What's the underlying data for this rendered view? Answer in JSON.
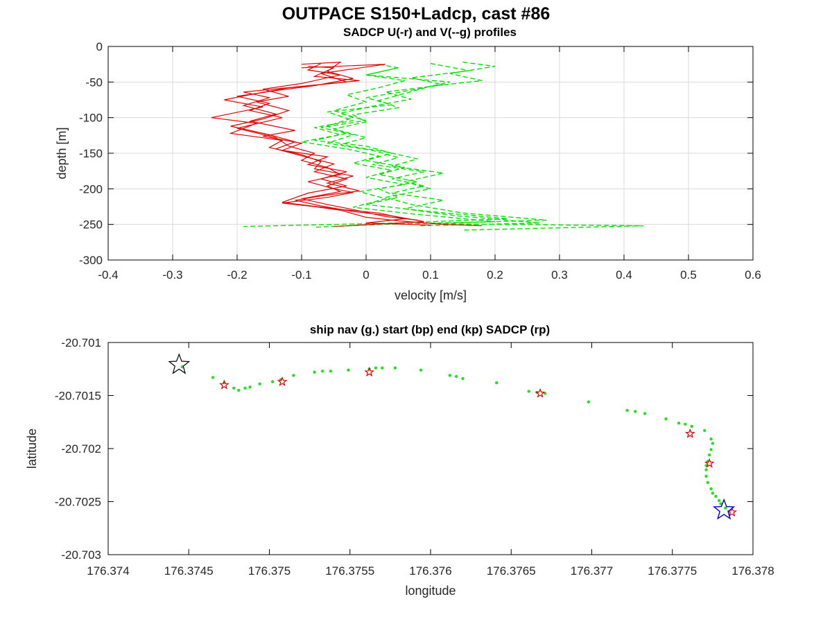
{
  "figure": {
    "title": "OUTPACE S150+Ladcp, cast #86"
  },
  "chart_data": [
    {
      "type": "line",
      "title": "SADCP U(-r) and V(--g) profiles",
      "xlabel": "velocity [m/s]",
      "ylabel": "depth [m]",
      "xlim": [
        -0.4,
        0.6
      ],
      "ylim": [
        -300,
        0
      ],
      "xticks": [
        "-0.4",
        "-0.3",
        "-0.2",
        "-0.1",
        "0",
        "0.1",
        "0.2",
        "0.3",
        "0.4",
        "0.5",
        "0.6"
      ],
      "yticks": [
        "0",
        "-50",
        "-100",
        "-150",
        "-200",
        "-250",
        "-300"
      ],
      "grid": true,
      "series": [
        {
          "values": [
            [
              -0.1,
              -25
            ],
            [
              -0.04,
              -22
            ],
            [
              -0.06,
              -35
            ],
            [
              -0.02,
              -45
            ],
            [
              -0.08,
              -55
            ],
            [
              -0.14,
              -62
            ],
            [
              -0.2,
              -70
            ],
            [
              -0.15,
              -80
            ],
            [
              -0.18,
              -90
            ],
            [
              -0.13,
              -100
            ],
            [
              -0.2,
              -115
            ],
            [
              -0.14,
              -128
            ],
            [
              -0.12,
              -140
            ],
            [
              -0.08,
              -150
            ],
            [
              -0.1,
              -160
            ],
            [
              -0.06,
              -170
            ],
            [
              -0.04,
              -180
            ],
            [
              -0.09,
              -190
            ],
            [
              -0.05,
              -200
            ],
            [
              -0.02,
              -205
            ],
            [
              -0.06,
              -212
            ],
            [
              -0.13,
              -220
            ],
            [
              -0.08,
              -225
            ],
            [
              -0.04,
              -230
            ],
            [
              0.0,
              -240
            ],
            [
              0.05,
              -245
            ],
            [
              0.12,
              -250
            ],
            [
              0.18,
              -252
            ]
          ]
        },
        {
          "values": [
            [
              -0.09,
              -28
            ],
            [
              -0.05,
              -30
            ],
            [
              -0.08,
              -42
            ],
            [
              -0.01,
              -48
            ],
            [
              -0.12,
              -58
            ],
            [
              -0.17,
              -66
            ],
            [
              -0.22,
              -75
            ],
            [
              -0.16,
              -85
            ],
            [
              -0.24,
              -100
            ],
            [
              -0.17,
              -108
            ],
            [
              -0.21,
              -122
            ],
            [
              -0.13,
              -132
            ],
            [
              -0.15,
              -142
            ],
            [
              -0.1,
              -152
            ],
            [
              -0.07,
              -162
            ],
            [
              -0.08,
              -172
            ],
            [
              -0.02,
              -182
            ],
            [
              -0.06,
              -192
            ],
            [
              -0.01,
              -203
            ],
            [
              -0.07,
              -210
            ],
            [
              -0.11,
              -216
            ],
            [
              -0.07,
              -224
            ],
            [
              -0.02,
              -232
            ],
            [
              0.04,
              -238
            ],
            [
              0.09,
              -246
            ],
            [
              -0.05,
              -253
            ]
          ]
        },
        {
          "values": [
            [
              -0.1,
              -30
            ],
            [
              0.03,
              -25
            ],
            [
              -0.07,
              -38
            ],
            [
              -0.03,
              -50
            ],
            [
              -0.11,
              -57
            ],
            [
              -0.19,
              -64
            ],
            [
              -0.15,
              -72
            ],
            [
              -0.19,
              -83
            ],
            [
              -0.14,
              -95
            ],
            [
              -0.18,
              -105
            ],
            [
              -0.11,
              -118
            ],
            [
              -0.16,
              -126
            ],
            [
              -0.1,
              -136
            ],
            [
              -0.13,
              -146
            ],
            [
              -0.06,
              -155
            ],
            [
              -0.09,
              -166
            ],
            [
              -0.03,
              -176
            ],
            [
              -0.07,
              -186
            ],
            [
              -0.03,
              -196
            ],
            [
              -0.09,
              -206
            ],
            [
              -0.13,
              -219
            ],
            [
              -0.05,
              -228
            ],
            [
              0.02,
              -234
            ],
            [
              0.06,
              -242
            ],
            [
              0.0,
              -248
            ],
            [
              0.1,
              -251
            ]
          ]
        },
        {
          "values": [
            [
              -0.07,
              -24
            ],
            [
              -0.09,
              -33
            ],
            [
              -0.04,
              -40
            ],
            [
              -0.1,
              -52
            ],
            [
              -0.16,
              -60
            ],
            [
              -0.12,
              -70
            ],
            [
              -0.17,
              -78
            ],
            [
              -0.12,
              -90
            ],
            [
              -0.16,
              -102
            ],
            [
              -0.21,
              -112
            ],
            [
              -0.15,
              -124
            ],
            [
              -0.11,
              -134
            ],
            [
              -0.14,
              -144
            ],
            [
              -0.09,
              -156
            ],
            [
              -0.05,
              -165
            ],
            [
              -0.08,
              -176
            ],
            [
              -0.03,
              -186
            ],
            [
              -0.06,
              -196
            ],
            [
              -0.04,
              -204
            ],
            [
              -0.1,
              -214
            ],
            [
              -0.06,
              -222
            ],
            [
              -0.01,
              -231
            ],
            [
              0.03,
              -239
            ],
            [
              0.08,
              -244
            ]
          ]
        }
      ],
      "series_v": [
        {
          "values": [
            [
              0.02,
              -25
            ],
            [
              0.05,
              -30
            ],
            [
              0.0,
              -40
            ],
            [
              0.06,
              -48
            ],
            [
              0.02,
              -58
            ],
            [
              -0.03,
              -68
            ],
            [
              0.0,
              -78
            ],
            [
              -0.05,
              -90
            ],
            [
              -0.02,
              -100
            ],
            [
              -0.06,
              -112
            ],
            [
              -0.03,
              -122
            ],
            [
              -0.08,
              -132
            ],
            [
              0.0,
              -140
            ],
            [
              0.04,
              -150
            ],
            [
              0.0,
              -160
            ],
            [
              0.06,
              -170
            ],
            [
              0.02,
              -180
            ],
            [
              0.08,
              -190
            ],
            [
              0.02,
              -200
            ],
            [
              0.05,
              -212
            ],
            [
              0.0,
              -222
            ],
            [
              0.1,
              -232
            ],
            [
              0.22,
              -242
            ],
            [
              0.05,
              -248
            ],
            [
              -0.19,
              -253
            ]
          ]
        },
        {
          "values": [
            [
              0.15,
              -22
            ],
            [
              0.2,
              -28
            ],
            [
              0.13,
              -38
            ],
            [
              0.18,
              -48
            ],
            [
              0.1,
              -56
            ],
            [
              0.06,
              -66
            ],
            [
              0.02,
              -76
            ],
            [
              0.05,
              -86
            ],
            [
              -0.02,
              -96
            ],
            [
              0.0,
              -106
            ],
            [
              -0.05,
              -116
            ],
            [
              0.0,
              -128
            ],
            [
              -0.04,
              -138
            ],
            [
              0.03,
              -148
            ],
            [
              0.08,
              -158
            ],
            [
              0.04,
              -168
            ],
            [
              0.12,
              -178
            ],
            [
              0.06,
              -190
            ],
            [
              0.1,
              -200
            ],
            [
              0.03,
              -212
            ],
            [
              0.07,
              -222
            ],
            [
              0.15,
              -234
            ],
            [
              0.28,
              -244
            ],
            [
              0.1,
              -249
            ],
            [
              0.43,
              -252
            ],
            [
              0.15,
              -258
            ]
          ]
        },
        {
          "values": [
            [
              0.05,
              -30
            ],
            [
              0.0,
              -40
            ],
            [
              0.13,
              -50
            ],
            [
              0.08,
              -60
            ],
            [
              0.0,
              -72
            ],
            [
              0.04,
              -82
            ],
            [
              -0.06,
              -92
            ],
            [
              -0.02,
              -104
            ],
            [
              -0.08,
              -114
            ],
            [
              -0.04,
              -124
            ],
            [
              -0.1,
              -134
            ],
            [
              -0.03,
              -144
            ],
            [
              0.02,
              -154
            ],
            [
              -0.02,
              -164
            ],
            [
              0.04,
              -174
            ],
            [
              0.0,
              -184
            ],
            [
              0.06,
              -194
            ],
            [
              -0.01,
              -204
            ],
            [
              0.03,
              -214
            ],
            [
              -0.02,
              -226
            ],
            [
              0.08,
              -236
            ],
            [
              0.2,
              -246
            ],
            [
              0.02,
              -250
            ],
            [
              -0.08,
              -254
            ]
          ]
        },
        {
          "values": [
            [
              0.1,
              -24
            ],
            [
              0.16,
              -34
            ],
            [
              0.07,
              -44
            ],
            [
              0.12,
              -54
            ],
            [
              0.03,
              -64
            ],
            [
              0.07,
              -74
            ],
            [
              0.01,
              -84
            ],
            [
              -0.04,
              -94
            ],
            [
              0.0,
              -104
            ],
            [
              -0.07,
              -114
            ],
            [
              -0.02,
              -124
            ],
            [
              -0.06,
              -136
            ],
            [
              0.01,
              -146
            ],
            [
              0.05,
              -156
            ],
            [
              0.01,
              -166
            ],
            [
              0.09,
              -176
            ],
            [
              0.04,
              -186
            ],
            [
              0.09,
              -196
            ],
            [
              0.04,
              -206
            ],
            [
              0.12,
              -216
            ],
            [
              0.06,
              -228
            ],
            [
              0.14,
              -238
            ],
            [
              0.27,
              -248
            ],
            [
              0.08,
              -252
            ]
          ]
        }
      ]
    },
    {
      "type": "scatter",
      "title": "ship nav (g.) start (bp) end (kp) SADCP (rp)",
      "xlabel": "longitude",
      "ylabel": "latitude",
      "xlim": [
        176.374,
        176.378
      ],
      "ylim": [
        -20.703,
        -20.701
      ],
      "xticks": [
        "176.374",
        "176.3745",
        "176.375",
        "176.3755",
        "176.376",
        "176.3765",
        "176.377",
        "176.3775",
        "176.378"
      ],
      "yticks": [
        "-20.701",
        "-20.7015",
        "-20.702",
        "-20.7025",
        "-20.703"
      ],
      "grid": false,
      "ship_nav": [
        [
          176.37446,
          -20.70123
        ],
        [
          176.37465,
          -20.70133
        ],
        [
          176.37472,
          -20.70138
        ],
        [
          176.37478,
          -20.70143
        ],
        [
          176.37481,
          -20.70145
        ],
        [
          176.37485,
          -20.70143
        ],
        [
          176.37488,
          -20.70142
        ],
        [
          176.37494,
          -20.70139
        ],
        [
          176.37502,
          -20.70137
        ],
        [
          176.37507,
          -20.70135
        ],
        [
          176.37515,
          -20.70131
        ],
        [
          176.37528,
          -20.70128
        ],
        [
          176.37533,
          -20.70127
        ],
        [
          176.37538,
          -20.70127
        ],
        [
          176.37549,
          -20.70126
        ],
        [
          176.37562,
          -20.70125
        ],
        [
          176.37566,
          -20.70124
        ],
        [
          176.3757,
          -20.70124
        ],
        [
          176.37578,
          -20.70124
        ],
        [
          176.37594,
          -20.70126
        ],
        [
          176.37612,
          -20.70131
        ],
        [
          176.37616,
          -20.70132
        ],
        [
          176.3762,
          -20.70134
        ],
        [
          176.37641,
          -20.70138
        ],
        [
          176.37661,
          -20.70146
        ],
        [
          176.37666,
          -20.70147
        ],
        [
          176.37671,
          -20.70148
        ],
        [
          176.37698,
          -20.70156
        ],
        [
          176.37722,
          -20.70164
        ],
        [
          176.37727,
          -20.70165
        ],
        [
          176.37733,
          -20.70167
        ],
        [
          176.37746,
          -20.70172
        ],
        [
          176.37754,
          -20.70176
        ],
        [
          176.37758,
          -20.70177
        ],
        [
          176.37762,
          -20.70179
        ],
        [
          176.3777,
          -20.70183
        ],
        [
          176.37774,
          -20.70191
        ],
        [
          176.37775,
          -20.70195
        ],
        [
          176.37774,
          -20.70201
        ],
        [
          176.37773,
          -20.70206
        ],
        [
          176.37772,
          -20.70212
        ],
        [
          176.37771,
          -20.70216
        ],
        [
          176.37771,
          -20.7022
        ],
        [
          176.37771,
          -20.70226
        ],
        [
          176.37772,
          -20.70232
        ],
        [
          176.37774,
          -20.70238
        ],
        [
          176.37775,
          -20.70242
        ],
        [
          176.37777,
          -20.70245
        ],
        [
          176.37779,
          -20.70249
        ],
        [
          176.3778,
          -20.70252
        ],
        [
          176.37783,
          -20.70256
        ]
      ],
      "sadcp": [
        [
          176.37472,
          -20.7014
        ],
        [
          176.37508,
          -20.70137
        ],
        [
          176.37562,
          -20.70128
        ],
        [
          176.37668,
          -20.70148
        ],
        [
          176.37761,
          -20.70186
        ],
        [
          176.37773,
          -20.70214
        ],
        [
          176.37787,
          -20.7026
        ]
      ],
      "start": [
        176.37444,
        -20.70121
      ],
      "end": [
        176.37782,
        -20.70258
      ]
    }
  ],
  "colors": {
    "u_line": "#e00000",
    "v_line": "#00e000",
    "nav_dot": "#20e020",
    "sadcp_marker": "#e00000",
    "start_marker": "#000000",
    "end_marker": "#0000cc",
    "grid": "#d9d9d9"
  }
}
